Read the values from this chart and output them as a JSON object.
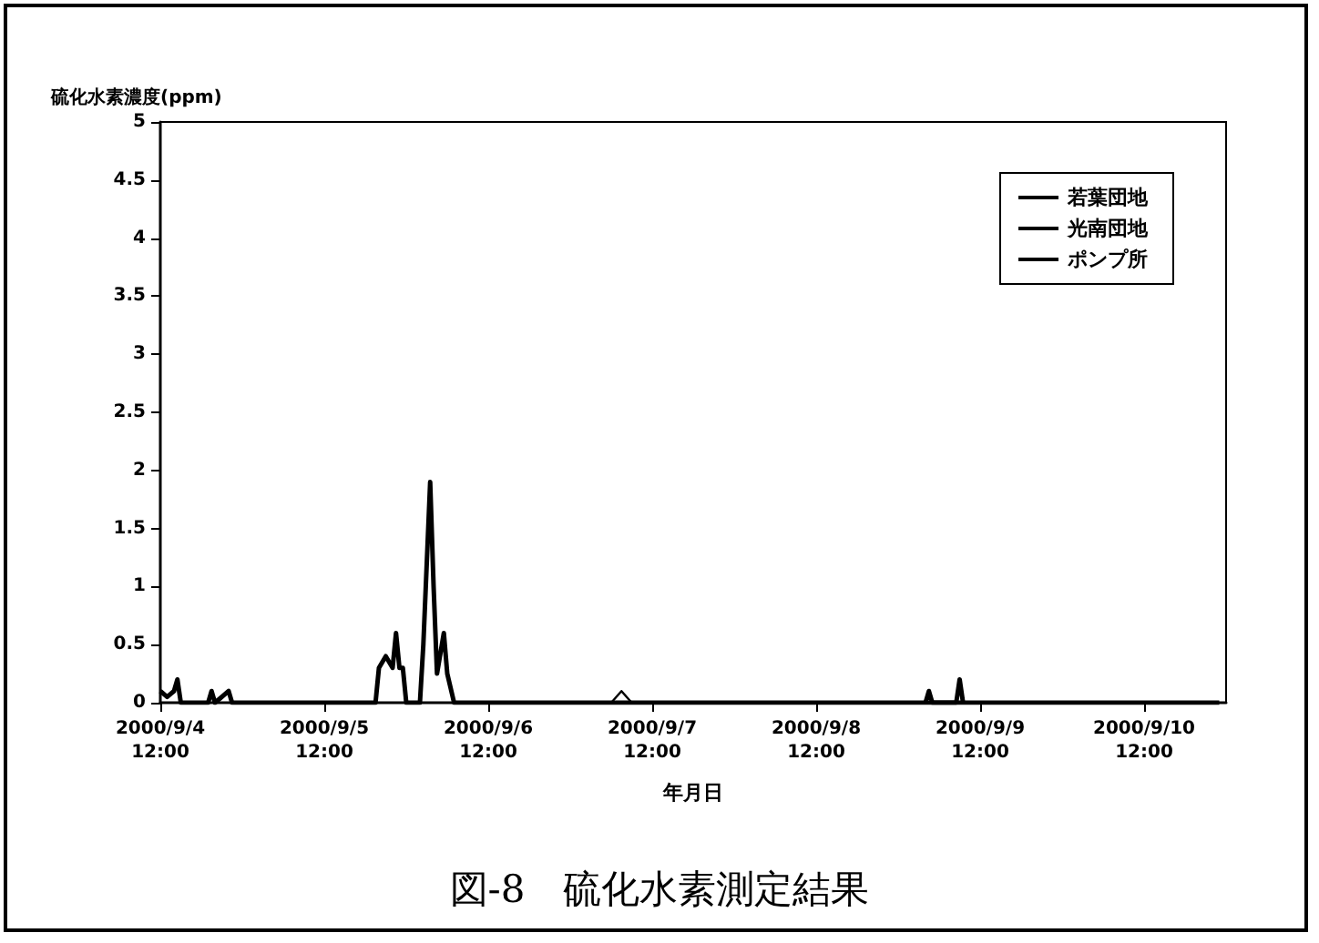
{
  "chart_data": {
    "type": "line",
    "title": "図-8　硫化水素測定結果",
    "xlabel": "年月日",
    "ylabel": "硫化水素濃度(ppm)",
    "xlim": [
      "2000-09-04T12:00",
      "2000-09-11T00:00"
    ],
    "xticks": [
      {
        "value": "2000-09-04T12:00",
        "label": "2000/9/4\n12:00"
      },
      {
        "value": "2000-09-05T12:00",
        "label": "2000/9/5\n12:00"
      },
      {
        "value": "2000-09-06T12:00",
        "label": "2000/9/6\n12:00"
      },
      {
        "value": "2000-09-07T12:00",
        "label": "2000/9/7\n12:00"
      },
      {
        "value": "2000-09-08T12:00",
        "label": "2000/9/8\n12:00"
      },
      {
        "value": "2000-09-09T12:00",
        "label": "2000/9/9\n12:00"
      },
      {
        "value": "2000-09-10T12:00",
        "label": "2000/9/10\n12:00"
      }
    ],
    "ylim": [
      0,
      5
    ],
    "yticks": [
      0,
      0.5,
      1,
      1.5,
      2,
      2.5,
      3,
      3.5,
      4,
      4.5,
      5
    ],
    "grid": false,
    "legend": "top right",
    "marker": "none",
    "line_style": "solid",
    "series": [
      {
        "name": "若葉団地",
        "color": "#000000",
        "x": [
          "2000-09-04T12:00",
          "2000-09-04T13:00",
          "2000-09-04T14:00",
          "2000-09-04T14:30",
          "2000-09-04T15:00",
          "2000-09-04T19:00",
          "2000-09-04T19:30",
          "2000-09-04T20:00",
          "2000-09-04T22:00",
          "2000-09-04T22:30",
          "2000-09-04T23:00",
          "2000-09-05T19:30",
          "2000-09-05T20:00",
          "2000-09-05T21:00",
          "2000-09-05T22:00",
          "2000-09-05T22:30",
          "2000-09-05T23:00",
          "2000-09-05T23:30",
          "2000-09-06T00:00",
          "2000-09-06T02:00",
          "2000-09-06T02:30",
          "2000-09-06T03:30",
          "2000-09-06T04:00",
          "2000-09-06T04:30",
          "2000-09-06T05:30",
          "2000-09-06T06:00",
          "2000-09-06T07:00",
          "2000-09-10T23:00"
        ],
        "values": [
          0.1,
          0.05,
          0.1,
          0.2,
          0,
          0,
          0.1,
          0,
          0.1,
          0,
          0,
          0,
          0.3,
          0.4,
          0.3,
          0.6,
          0.3,
          0.3,
          0,
          0,
          0.5,
          1.9,
          1.0,
          0.25,
          0.6,
          0.25,
          0,
          0
        ]
      },
      {
        "name": "光南団地",
        "color": "#000000",
        "x": [
          "2000-09-07T06:00",
          "2000-09-07T07:30",
          "2000-09-07T09:00"
        ],
        "values": [
          0,
          0.1,
          0
        ]
      },
      {
        "name": "ポンプ所",
        "color": "#000000",
        "x": [
          "2000-09-09T04:00",
          "2000-09-09T04:30",
          "2000-09-09T05:00",
          "2000-09-09T08:30",
          "2000-09-09T09:00",
          "2000-09-09T09:30"
        ],
        "values": [
          0,
          0.1,
          0,
          0,
          0.2,
          0
        ]
      }
    ]
  }
}
